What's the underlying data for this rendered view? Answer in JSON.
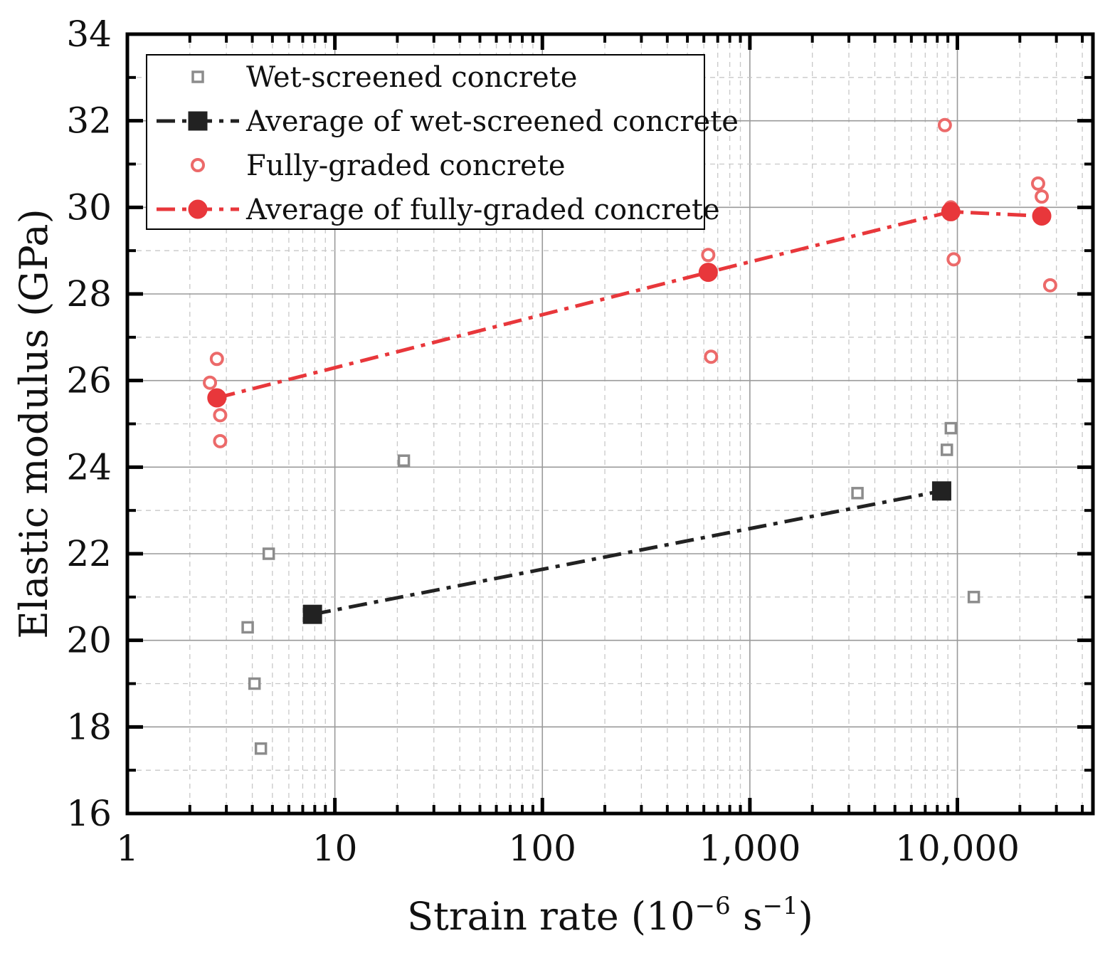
{
  "chart_data": {
    "type": "scatter",
    "xscale": "log",
    "xlim": [
      1,
      45000
    ],
    "ylim": [
      16,
      34
    ],
    "grid": true,
    "xlabel_main": "Strain rate (10",
    "xlabel_exp1": "−6",
    "xlabel_mid": " s",
    "xlabel_exp2": "−1",
    "xlabel_end": ")",
    "ylabel": "Elastic modulus (GPa)",
    "x_ticks": [
      1,
      10,
      100,
      1000,
      10000
    ],
    "x_tick_labels": [
      "1",
      "10",
      "100",
      "1,000",
      "10,000"
    ],
    "y_ticks": [
      16,
      18,
      20,
      22,
      24,
      26,
      28,
      30,
      32,
      34
    ],
    "y_tick_labels": [
      "16",
      "18",
      "20",
      "22",
      "24",
      "26",
      "28",
      "30",
      "32",
      "34"
    ],
    "legend_position": "top-left",
    "series": [
      {
        "name": "Wet-screened concrete",
        "style": "open-square",
        "color": "#8c8c8c",
        "points": [
          {
            "x": 3.8,
            "y": 20.3
          },
          {
            "x": 4.1,
            "y": 19.0
          },
          {
            "x": 4.4,
            "y": 17.5
          },
          {
            "x": 4.8,
            "y": 22.0
          },
          {
            "x": 21.5,
            "y": 24.15
          },
          {
            "x": 3300,
            "y": 23.4
          },
          {
            "x": 8900,
            "y": 24.4
          },
          {
            "x": 9300,
            "y": 24.9
          },
          {
            "x": 12000,
            "y": 21.0
          }
        ]
      },
      {
        "name": "Average of wet-screened concrete",
        "style": "filled-square-dashdot",
        "color": "#222222",
        "points": [
          {
            "x": 7.8,
            "y": 20.6
          },
          {
            "x": 8400,
            "y": 23.45
          }
        ]
      },
      {
        "name": "Fully-graded concrete",
        "style": "open-circle",
        "color": "#ec6a6a",
        "points": [
          {
            "x": 2.5,
            "y": 25.95
          },
          {
            "x": 2.7,
            "y": 26.5
          },
          {
            "x": 2.8,
            "y": 25.2
          },
          {
            "x": 2.8,
            "y": 24.6
          },
          {
            "x": 630,
            "y": 28.9
          },
          {
            "x": 650,
            "y": 26.55
          },
          {
            "x": 8700,
            "y": 31.9
          },
          {
            "x": 9300,
            "y": 30.0
          },
          {
            "x": 9600,
            "y": 28.8
          },
          {
            "x": 24500,
            "y": 30.55
          },
          {
            "x": 25500,
            "y": 30.25
          },
          {
            "x": 28000,
            "y": 28.2
          }
        ]
      },
      {
        "name": "Average of fully-graded concrete",
        "style": "filled-circle-dashdot",
        "color": "#e8373b",
        "points": [
          {
            "x": 2.7,
            "y": 25.6
          },
          {
            "x": 630,
            "y": 28.5
          },
          {
            "x": 9300,
            "y": 29.9
          },
          {
            "x": 25500,
            "y": 29.8
          }
        ]
      }
    ]
  }
}
